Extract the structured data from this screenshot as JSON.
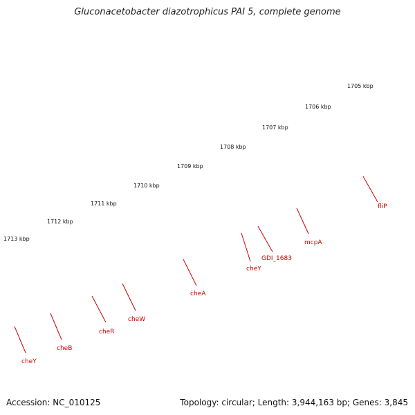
{
  "title": "Gluconacetobacter diazotrophicus PAI 5, complete genome",
  "footer": {
    "accession": "Accession: NC_010125",
    "summary": "Topology: circular; Length: 3,944,163 bp; Genes: 3,845"
  },
  "colors": {
    "backbone": "#808080",
    "forward_gene": "#ff0000",
    "reverse_gene": "#33cc33",
    "reverse_gene_light": "#c8f03c",
    "tick": "#1a7f1a",
    "label": "#cc0000"
  },
  "ruler": [
    {
      "label": "1705 kbp"
    },
    {
      "label": "1706 kbp"
    },
    {
      "label": "1707 kbp"
    },
    {
      "label": "1708 kbp"
    },
    {
      "label": "1709 kbp"
    },
    {
      "label": "1710 kbp"
    },
    {
      "label": "1711 kbp"
    },
    {
      "label": "1712 kbp"
    },
    {
      "label": "1713 kbp"
    }
  ],
  "gene_labels": [
    {
      "name": "fliP"
    },
    {
      "name": "mcpA"
    },
    {
      "name": "GDI_1683"
    },
    {
      "name": "cheY"
    },
    {
      "name": "cheA"
    },
    {
      "name": "cheW"
    },
    {
      "name": "cheR"
    },
    {
      "name": "cheB"
    },
    {
      "name": "cheY"
    }
  ]
}
